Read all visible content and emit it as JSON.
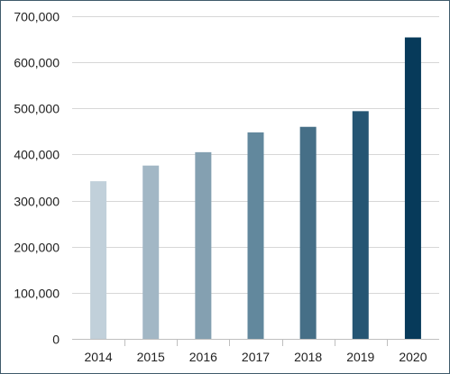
{
  "chart_data": {
    "type": "bar",
    "title": "",
    "xlabel": "",
    "ylabel": "",
    "categories": [
      "2014",
      "2015",
      "2016",
      "2017",
      "2018",
      "2019",
      "2020"
    ],
    "values": [
      342000,
      376000,
      405000,
      448000,
      460000,
      494000,
      654000
    ],
    "ylim": [
      0,
      700000
    ],
    "yticks": [
      0,
      100000,
      200000,
      300000,
      400000,
      500000,
      600000,
      700000
    ],
    "ytick_labels": [
      "0",
      "100,000",
      "200,000",
      "300,000",
      "400,000",
      "500,000",
      "600,000",
      "700,000"
    ],
    "grid": true,
    "legend": "none",
    "colors": [
      "#c1d0da",
      "#a2b7c5",
      "#84a0b1",
      "#62889d",
      "#466f87",
      "#255573",
      "#073a5a"
    ]
  }
}
